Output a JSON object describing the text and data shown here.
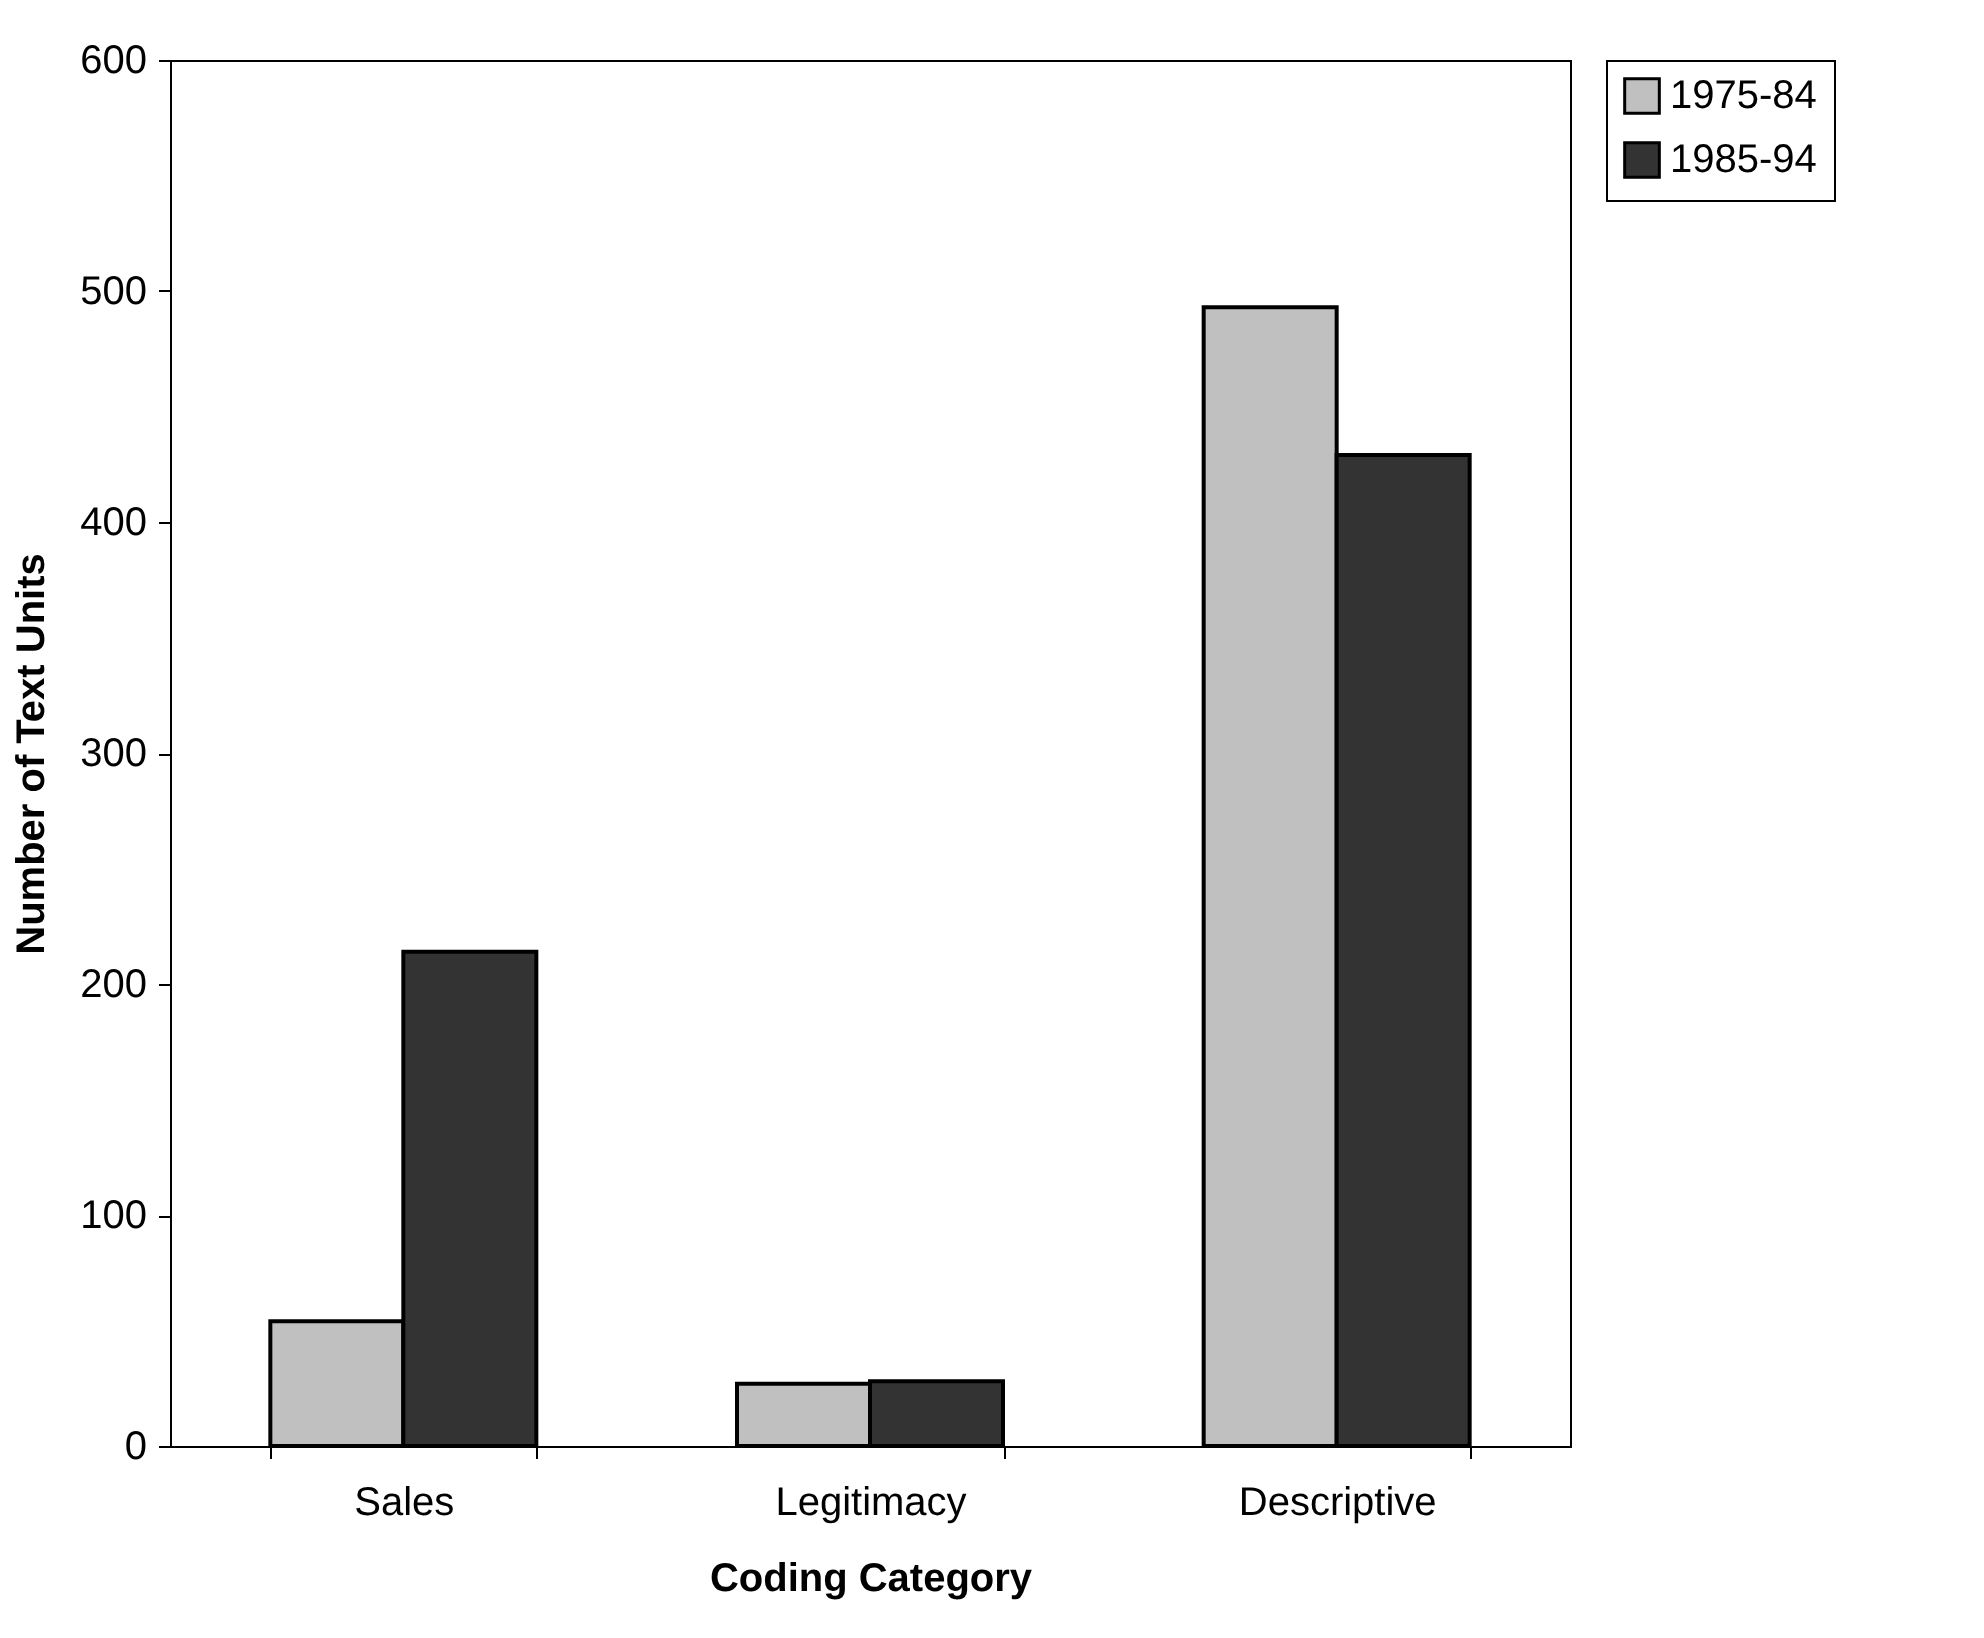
{
  "chart_data": {
    "type": "bar",
    "xlabel": "Coding Category",
    "ylabel": "Number of Text Units",
    "categories": [
      "Sales",
      "Legitimacy",
      "Descriptive"
    ],
    "series": [
      {
        "name": "1975-84",
        "color": "#c0c0c0",
        "values": [
          54,
          27,
          493
        ]
      },
      {
        "name": "1985-94",
        "color": "#333333",
        "values": [
          214,
          28,
          429
        ]
      }
    ],
    "ylim": [
      0,
      600
    ],
    "yticks": [
      0,
      100,
      200,
      300,
      400,
      500,
      600
    ],
    "grid": false,
    "legend": "right"
  }
}
